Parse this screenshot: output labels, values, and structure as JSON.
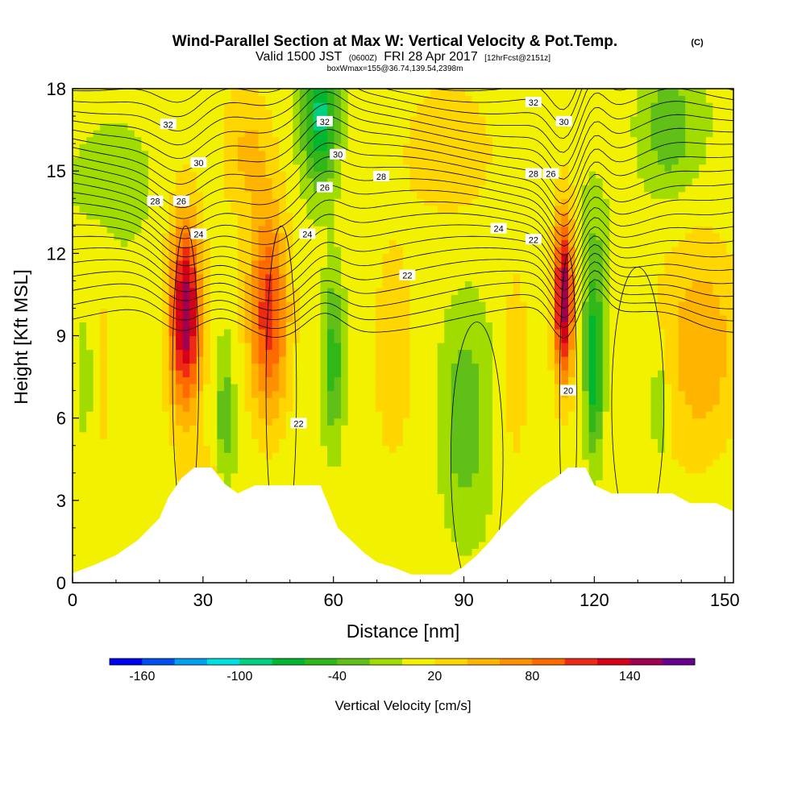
{
  "chart_data": {
    "type": "heatmap",
    "title": "Wind-Parallel Section at Max W: Vertical Velocity & Pot.Temp.",
    "title_unit": "(C)",
    "subtitle_parts": [
      "Valid 1500 JST",
      "(0600Z)",
      "FRI 28 Apr 2017",
      "[12hrFcst@2151z]"
    ],
    "subtitle2": "boxWmax=155@36.74,139.54,2398m",
    "xlabel": "Distance [nm]",
    "ylabel": "Height [Kft MSL]",
    "xlim": [
      0,
      152
    ],
    "ylim": [
      0,
      18
    ],
    "x_ticks": [
      0,
      30,
      60,
      90,
      120,
      150
    ],
    "y_ticks": [
      0,
      3,
      6,
      9,
      12,
      15,
      18
    ],
    "colorbar": {
      "label": "Vertical Velocity [cm/s]",
      "tick_labels": [
        "-160",
        "-100",
        "-40",
        "20",
        "80",
        "140"
      ],
      "tick_values": [
        -160,
        -100,
        -40,
        20,
        80,
        140
      ],
      "boundaries": [
        -180,
        -160,
        -140,
        -120,
        -100,
        -80,
        -60,
        -40,
        -20,
        0,
        20,
        40,
        60,
        80,
        100,
        120,
        140,
        160,
        180
      ],
      "colors": [
        "#0000f0",
        "#0050f0",
        "#00a0f0",
        "#00e0e0",
        "#00d080",
        "#00b830",
        "#30b818",
        "#60c018",
        "#a0dc00",
        "#f2f200",
        "#ffd600",
        "#ffb400",
        "#ff9000",
        "#ff6a00",
        "#ef2a14",
        "#d60018",
        "#a00050",
        "#680090"
      ]
    },
    "terrain_kft": [
      [
        0,
        0.35
      ],
      [
        5,
        0.65
      ],
      [
        10,
        1.0
      ],
      [
        15,
        1.55
      ],
      [
        20,
        2.35
      ],
      [
        22,
        3.1
      ],
      [
        25,
        3.8
      ],
      [
        28,
        4.2
      ],
      [
        32,
        4.2
      ],
      [
        35,
        3.6
      ],
      [
        38,
        3.25
      ],
      [
        42,
        3.55
      ],
      [
        47,
        3.55
      ],
      [
        52,
        3.55
      ],
      [
        57,
        3.55
      ],
      [
        61,
        2.0
      ],
      [
        64,
        1.55
      ],
      [
        67,
        1.1
      ],
      [
        70,
        0.75
      ],
      [
        74,
        0.55
      ],
      [
        78,
        0.3
      ],
      [
        87,
        0.3
      ],
      [
        90,
        0.6
      ],
      [
        93,
        1.0
      ],
      [
        96,
        1.5
      ],
      [
        99,
        2.1
      ],
      [
        102,
        2.6
      ],
      [
        105,
        3.1
      ],
      [
        108,
        3.5
      ],
      [
        111,
        3.8
      ],
      [
        114,
        4.2
      ],
      [
        118,
        4.2
      ],
      [
        120,
        3.55
      ],
      [
        124,
        3.25
      ],
      [
        130,
        3.25
      ],
      [
        138,
        3.25
      ],
      [
        142,
        2.9
      ],
      [
        148,
        2.9
      ],
      [
        152,
        2.6
      ]
    ],
    "updrafts": [
      {
        "x": 26,
        "z": 9.8,
        "sx": 3.6,
        "sz": 3.4,
        "w": 150
      },
      {
        "x": 45,
        "z": 9.8,
        "sx": 4.6,
        "sz": 3.8,
        "w": 108
      },
      {
        "x": 113,
        "z": 10.4,
        "sx": 2.3,
        "sz": 3.0,
        "w": 150
      },
      {
        "x": 145,
        "z": 8.6,
        "sx": 9.0,
        "sz": 4.0,
        "w": 50
      },
      {
        "x": 40,
        "z": 15.8,
        "sx": 6.0,
        "sz": 2.6,
        "w": 38
      },
      {
        "x": 6,
        "z": 8.0,
        "sx": 4.0,
        "sz": 5.0,
        "w": 14
      },
      {
        "x": 88,
        "z": 15.8,
        "sx": 10.0,
        "sz": 2.5,
        "w": 30
      },
      {
        "x": 102,
        "z": 8.0,
        "sx": 3.0,
        "sz": 4.0,
        "w": 30
      },
      {
        "x": 74,
        "z": 8.5,
        "sx": 4.5,
        "sz": 4.0,
        "w": 20
      },
      {
        "x": 30,
        "z": 3.8,
        "sx": 4.0,
        "sz": 1.2,
        "w": 30
      }
    ],
    "downdrafts": [
      {
        "x": 57,
        "z": 17.0,
        "sx": 4.0,
        "sz": 2.5,
        "w": -95
      },
      {
        "x": 60,
        "z": 8.2,
        "sx": 2.5,
        "sz": 3.0,
        "w": -60
      },
      {
        "x": 120,
        "z": 7.8,
        "sx": 2.0,
        "sz": 3.0,
        "w": -90
      },
      {
        "x": 90,
        "z": 6.0,
        "sx": 5.0,
        "sz": 3.5,
        "w": -45
      },
      {
        "x": 137,
        "z": 16.6,
        "sx": 7.0,
        "sz": 2.5,
        "w": -45
      },
      {
        "x": 35,
        "z": 6.0,
        "sx": 2.0,
        "sz": 2.5,
        "w": -40
      },
      {
        "x": 3,
        "z": 7.5,
        "sx": 2.0,
        "sz": 2.5,
        "w": -30
      },
      {
        "x": 135,
        "z": 6.5,
        "sx": 1.8,
        "sz": 2.0,
        "w": -40
      },
      {
        "x": 10,
        "z": 14.5,
        "sx": 10.0,
        "sz": 3.0,
        "w": -22
      },
      {
        "x": 120,
        "z": 12.0,
        "sx": 4.0,
        "sz": 3.0,
        "w": -28
      }
    ],
    "theta_labels": [
      {
        "text": "32",
        "x": 22,
        "z": 16.7
      },
      {
        "text": "30",
        "x": 29,
        "z": 15.3
      },
      {
        "text": "28",
        "x": 19,
        "z": 13.9
      },
      {
        "text": "26",
        "x": 25,
        "z": 13.9
      },
      {
        "text": "24",
        "x": 29,
        "z": 12.7
      },
      {
        "text": "32",
        "x": 58,
        "z": 16.8
      },
      {
        "text": "30",
        "x": 61,
        "z": 15.6
      },
      {
        "text": "26",
        "x": 58,
        "z": 14.4
      },
      {
        "text": "28",
        "x": 71,
        "z": 14.8
      },
      {
        "text": "24",
        "x": 54,
        "z": 12.7
      },
      {
        "text": "22",
        "x": 77,
        "z": 11.2
      },
      {
        "text": "22",
        "x": 52,
        "z": 5.8
      },
      {
        "text": "32",
        "x": 106,
        "z": 17.5
      },
      {
        "text": "30",
        "x": 113,
        "z": 16.8
      },
      {
        "text": "28",
        "x": 106,
        "z": 14.9
      },
      {
        "text": "26",
        "x": 110,
        "z": 14.9
      },
      {
        "text": "24",
        "x": 98,
        "z": 12.9
      },
      {
        "text": "22",
        "x": 106,
        "z": 12.5
      },
      {
        "text": "20",
        "x": 114,
        "z": 7.0
      }
    ]
  }
}
